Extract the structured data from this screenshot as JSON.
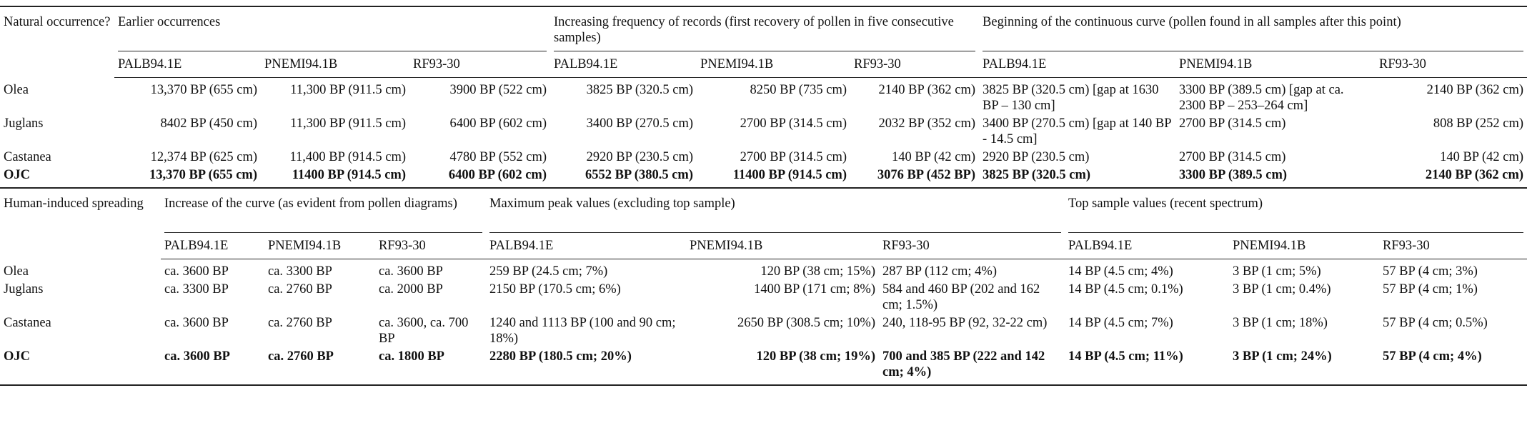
{
  "table1": {
    "corner": "Natural occurrence?",
    "groups": [
      "Earlier occurrences",
      "Increasing frequency of records (first recovery of pollen in five consecutive samples)",
      "Beginning of the continuous curve (pollen found in all samples after this point)"
    ],
    "subheaders": [
      "PALB94.1E",
      "PNEMI94.1B",
      "RF93-30",
      "PALB94.1E",
      "PNEMI94.1B",
      "RF93-30",
      "PALB94.1E",
      "PNEMI94.1B",
      "RF93-30"
    ],
    "rows": [
      {
        "label": "Olea",
        "cells": [
          "13,370 BP (655 cm)",
          "11,300 BP (911.5 cm)",
          "3900 BP (522 cm)",
          "3825 BP (320.5 cm)",
          "8250 BP (735 cm)",
          "2140 BP (362 cm)",
          "3825 BP (320.5 cm) [gap at 1630 BP – 130 cm]",
          "3300 BP (389.5 cm) [gap at ca. 2300 BP – 253–264 cm]",
          "2140 BP (362 cm)"
        ]
      },
      {
        "label": "Juglans",
        "cells": [
          "8402 BP (450 cm)",
          "11,300 BP (911.5 cm)",
          "6400 BP (602 cm)",
          "3400 BP (270.5 cm)",
          "2700 BP (314.5 cm)",
          "2032 BP (352 cm)",
          "3400 BP (270.5 cm) [gap at 140 BP - 14.5 cm]",
          "2700 BP (314.5 cm)",
          "808 BP (252 cm)"
        ]
      },
      {
        "label": "Castanea",
        "cells": [
          "12,374 BP (625 cm)",
          "11,400 BP (914.5 cm)",
          "4780 BP (552 cm)",
          "2920 BP (230.5 cm)",
          "2700 BP (314.5 cm)",
          "140 BP (42 cm)",
          "2920 BP (230.5 cm)",
          "2700 BP (314.5 cm)",
          "140 BP (42 cm)"
        ]
      },
      {
        "label": "OJC",
        "cells": [
          "13,370 BP (655 cm)",
          "11400 BP (914.5 cm)",
          "6400 BP (602 cm)",
          "6552 BP (380.5 cm)",
          "11400 BP (914.5 cm)",
          "3076 BP (452 BP)",
          "3825 BP (320.5 cm)",
          "3300 BP (389.5 cm)",
          "2140 BP (362 cm)"
        ]
      }
    ]
  },
  "table2": {
    "corner": "Human-induced spreading",
    "groups": [
      "Increase of the curve (as evident from pollen diagrams)",
      "Maximum peak values (excluding top sample)",
      "Top sample values (recent spectrum)"
    ],
    "subheaders": [
      "PALB94.1E",
      "PNEMI94.1B",
      "RF93-30",
      "PALB94.1E",
      "PNEMI94.1B",
      "RF93-30",
      "PALB94.1E",
      "PNEMI94.1B",
      "RF93-30"
    ],
    "rows": [
      {
        "label": "Olea",
        "cells": [
          "ca. 3600 BP",
          "ca. 3300 BP",
          "ca. 3600 BP",
          "259 BP (24.5 cm; 7%)",
          "120 BP (38 cm; 15%)",
          "287 BP (112 cm; 4%)",
          "14 BP (4.5 cm; 4%)",
          "3 BP (1 cm; 5%)",
          "57 BP (4 cm; 3%)"
        ]
      },
      {
        "label": "Juglans",
        "cells": [
          "ca. 3300 BP",
          "ca. 2760 BP",
          "ca. 2000 BP",
          "2150 BP (170.5 cm; 6%)",
          "1400 BP (171 cm; 8%)",
          "584 and 460 BP (202 and 162 cm; 1.5%)",
          "14 BP (4.5 cm; 0.1%)",
          "3 BP (1 cm; 0.4%)",
          "57 BP (4 cm; 1%)"
        ]
      },
      {
        "label": "Castanea",
        "cells": [
          "ca. 3600 BP",
          "ca. 2760 BP",
          "ca. 3600, ca. 700 BP",
          "1240 and 1113 BP (100 and 90 cm; 18%)",
          "2650 BP (308.5 cm; 10%)",
          "240, 118-95 BP (92, 32-22 cm)",
          "14 BP (4.5 cm; 7%)",
          "3 BP (1 cm; 18%)",
          "57 BP (4 cm; 0.5%)"
        ]
      },
      {
        "label": "OJC",
        "cells": [
          "ca. 3600 BP",
          "ca. 2760 BP",
          "ca. 1800 BP",
          "2280 BP (180.5 cm; 20%)",
          "120 BP (38 cm; 19%)",
          "700 and 385 BP (222 and 142 cm; 4%)",
          "14 BP (4.5 cm; 11%)",
          "3 BP (1 cm; 24%)",
          "57 BP (4 cm; 4%)"
        ]
      }
    ]
  }
}
